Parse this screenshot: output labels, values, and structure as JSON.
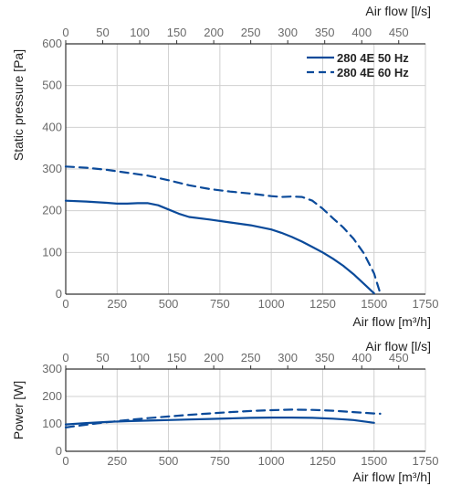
{
  "colors": {
    "series": "#0a4a9a",
    "grid": "#d0d0d0",
    "axis": "#333333"
  },
  "chart_data": [
    {
      "type": "line",
      "x": [
        0,
        100,
        200,
        250,
        300,
        350,
        400,
        450,
        500,
        550,
        600,
        700,
        800,
        900,
        1000,
        1050,
        1100,
        1150,
        1200,
        1250,
        1300,
        1350,
        1400,
        1450,
        1500
      ],
      "series": [
        {
          "name": "280 4E 50 Hz",
          "style": "solid",
          "values": [
            224,
            222,
            219,
            217,
            217,
            218,
            218,
            213,
            203,
            193,
            185,
            179,
            172,
            165,
            155,
            147,
            137,
            126,
            113,
            100,
            85,
            68,
            48,
            25,
            2
          ]
        },
        {
          "name": "280 4E 60 Hz",
          "style": "dashed",
          "x": [
            0,
            100,
            200,
            300,
            400,
            500,
            600,
            700,
            800,
            900,
            1000,
            1050,
            1100,
            1150,
            1200,
            1250,
            1300,
            1350,
            1400,
            1450,
            1500,
            1530
          ],
          "values": [
            306,
            303,
            298,
            291,
            284,
            273,
            261,
            252,
            246,
            241,
            235,
            233,
            234,
            233,
            224,
            205,
            182,
            160,
            133,
            98,
            50,
            2
          ]
        }
      ],
      "xlabel": "Air flow [m³/h]",
      "x2label": "Air flow [l/s]",
      "ylabel": "Static pressure [Pa]",
      "xticks": [
        "0",
        "250",
        "500",
        "750",
        "1000",
        "1250",
        "1500",
        "1750"
      ],
      "x2ticks": [
        "0",
        "50",
        "100",
        "150",
        "200",
        "250",
        "300",
        "350",
        "400",
        "450"
      ],
      "yticks": [
        "0",
        "100",
        "200",
        "300",
        "400",
        "500",
        "600"
      ],
      "xlim": [
        0,
        1750
      ],
      "x2lim": [
        0,
        486.1
      ],
      "ylim": [
        0,
        600
      ],
      "grid": true,
      "legend": "top-right"
    },
    {
      "type": "line",
      "series": [
        {
          "name": "280 4E 50 Hz",
          "style": "solid",
          "x": [
            0,
            100,
            200,
            300,
            400,
            500,
            600,
            700,
            800,
            900,
            1000,
            1100,
            1200,
            1300,
            1400,
            1500
          ],
          "values": [
            98,
            103,
            107,
            110,
            112,
            114,
            116,
            118,
            120,
            122,
            123,
            123,
            122,
            119,
            114,
            104
          ]
        },
        {
          "name": "280 4E 60 Hz",
          "style": "dashed",
          "x": [
            0,
            100,
            200,
            300,
            400,
            500,
            600,
            700,
            800,
            900,
            1000,
            1100,
            1200,
            1300,
            1400,
            1500,
            1530
          ],
          "values": [
            87,
            97,
            106,
            114,
            121,
            127,
            133,
            138,
            143,
            147,
            150,
            152,
            151,
            148,
            143,
            138,
            137
          ]
        }
      ],
      "xlabel": "Air flow [m³/h]",
      "x2label": "Air flow [l/s]",
      "ylabel": "Power [W]",
      "xticks": [
        "0",
        "250",
        "500",
        "750",
        "1000",
        "1250",
        "1500",
        "1750"
      ],
      "x2ticks": [
        "0",
        "50",
        "100",
        "150",
        "200",
        "250",
        "300",
        "350",
        "400",
        "450"
      ],
      "yticks": [
        "0",
        "100",
        "200",
        "300"
      ],
      "xlim": [
        0,
        1750
      ],
      "x2lim": [
        0,
        486.1
      ],
      "ylim": [
        0,
        300
      ],
      "grid": true
    }
  ]
}
